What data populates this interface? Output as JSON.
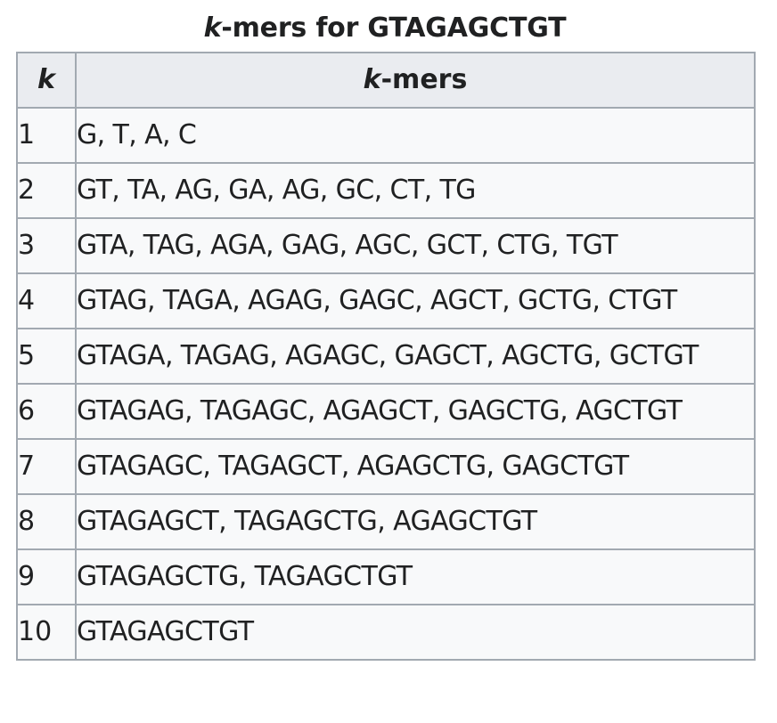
{
  "caption": {
    "italic_part": "k",
    "rest": "-mers for GTAGAGCTGT"
  },
  "header": {
    "k_label": "k",
    "kmers_italic": "k",
    "kmers_rest": "-mers"
  },
  "rows": [
    {
      "k": "1",
      "kmers": "G, T, A, C"
    },
    {
      "k": "2",
      "kmers": "GT, TA, AG, GA, AG, GC, CT, TG"
    },
    {
      "k": "3",
      "kmers": "GTA, TAG, AGA, GAG, AGC, GCT, CTG, TGT"
    },
    {
      "k": "4",
      "kmers": "GTAG, TAGA, AGAG, GAGC, AGCT, GCTG, CTGT"
    },
    {
      "k": "5",
      "kmers": "GTAGA, TAGAG, AGAGC, GAGCT, AGCTG, GCTGT"
    },
    {
      "k": "6",
      "kmers": "GTAGAG, TAGAGC, AGAGCT, GAGCTG, AGCTGT"
    },
    {
      "k": "7",
      "kmers": "GTAGAGC, TAGAGCT, AGAGCTG, GAGCTGT"
    },
    {
      "k": "8",
      "kmers": "GTAGAGCT, TAGAGCTG, AGAGCTGT"
    },
    {
      "k": "9",
      "kmers": "GTAGAGCTG, TAGAGCTGT"
    },
    {
      "k": "10",
      "kmers": "GTAGAGCTGT"
    }
  ]
}
